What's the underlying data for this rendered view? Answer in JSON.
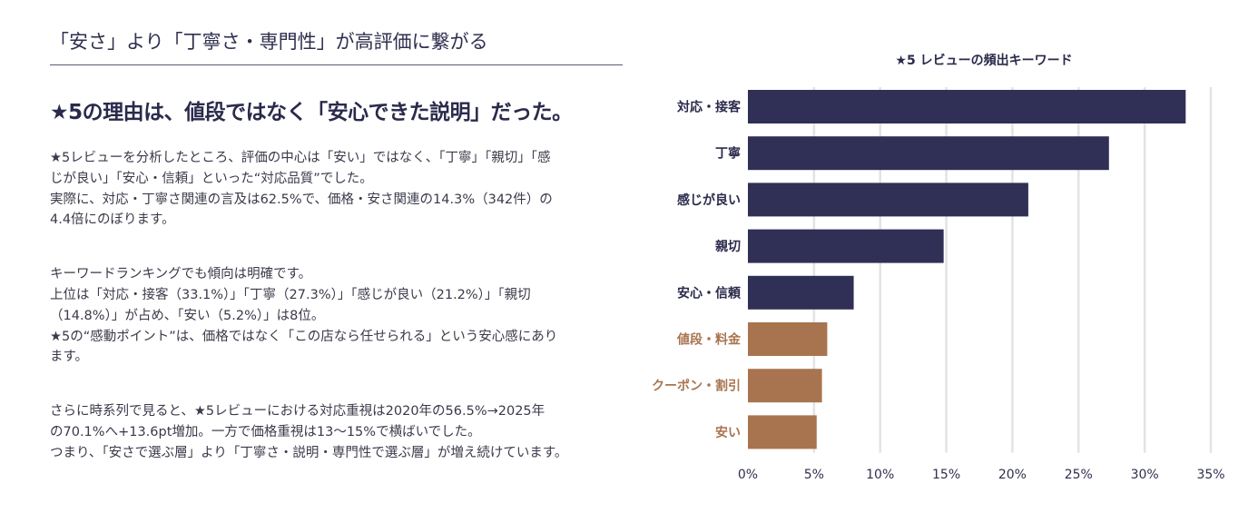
{
  "section_title": "「安さ」より「丁寧さ・専門性」が高評価に繋がる",
  "heading": "★5の理由は、値段ではなく「安心できた説明」だった。",
  "paragraphs": [
    [
      "★5レビューを分析したところ、評価の中心は「安い」ではなく、「丁寧」「親切」「感",
      "じが良い」「安心・信頼」といった“対応品質”でした。",
      "実際に、対応・丁寧さ関連の言及は62.5%で、価格・安さ関連の14.3%（342件）の",
      "4.4倍にのぼります。"
    ],
    [
      "キーワードランキングでも傾向は明確です。",
      "上位は「対応・接客（33.1%）」「丁寧（27.3%）」「感じが良い（21.2%）」「親切",
      "（14.8%）」が占め、「安い（5.2%）」は8位。",
      "★5の“感動ポイント”は、価格ではなく「この店なら任せられる」という安心感にあり",
      "ます。"
    ],
    [
      "さらに時系列で見ると、★5レビューにおける対応重視は2020年の56.5%→2025年",
      "の70.1%へ+13.6pt増加。一方で価格重視は13〜15%で横ばいでした。",
      "つまり、「安さで選ぶ層」より「丁寧さ・説明・専門性で選ぶ層」が増え続けています。"
    ]
  ],
  "colors": {
    "service": "#302f55",
    "price": "#a8744f",
    "grid": "#e3e3e3",
    "text": "#2f2f4f"
  },
  "chart_data": {
    "type": "bar",
    "orientation": "horizontal",
    "title": "★5 レビューの頻出キーワード",
    "categories": [
      "対応・接客",
      "丁寧",
      "感じが良い",
      "親切",
      "安心・信頼",
      "値段・料金",
      "クーポン・割引",
      "安い"
    ],
    "values": [
      33.1,
      27.3,
      21.2,
      14.8,
      8.0,
      6.0,
      5.6,
      5.2
    ],
    "groups": [
      "service",
      "service",
      "service",
      "service",
      "service",
      "price",
      "price",
      "price"
    ],
    "xlim": [
      0,
      35
    ],
    "xticks": [
      "0%",
      "5%",
      "10%",
      "15%",
      "20%",
      "25%",
      "30%",
      "35%"
    ],
    "xlabel": "",
    "ylabel": "",
    "grid": "vertical"
  }
}
